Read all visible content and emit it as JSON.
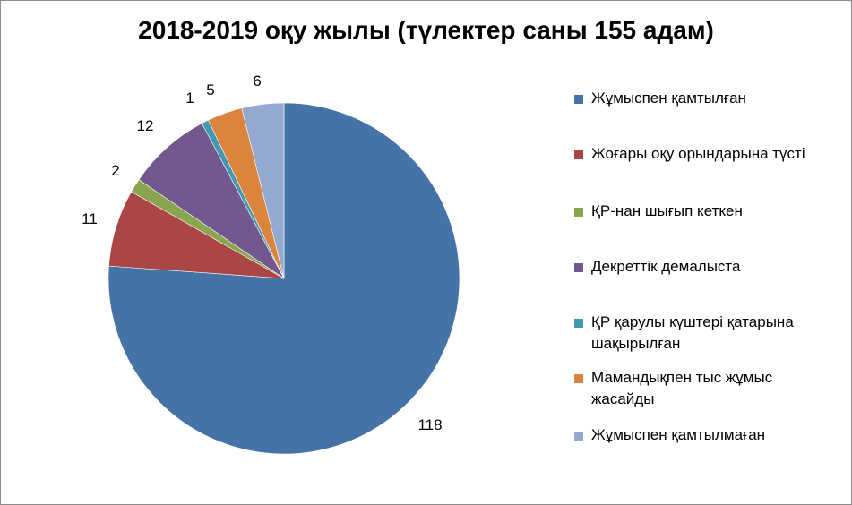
{
  "chart_data": {
    "type": "pie",
    "title": "2018-2019 оқу жылы (түлектер саны 155 адам)",
    "start_angle": "12 o'clock, clockwise",
    "legend_position": "right",
    "slices": [
      {
        "name": "Жұмыспен қамтылған",
        "value": 118,
        "label": "118",
        "color": "#4572a7"
      },
      {
        "name": "Жоғары оқу орындарына түсті",
        "value": 11,
        "label": "11",
        "color": "#aa4643"
      },
      {
        "name": "ҚР-нан шығып кеткен",
        "value": 2,
        "label": "2",
        "color": "#89a54e"
      },
      {
        "name": "Декреттік демалыста",
        "value": 12,
        "label": "12",
        "color": "#71588f"
      },
      {
        "name": "ҚР қарулы күштері қатарына шақырылған",
        "value": 1,
        "label": "1",
        "color": "#4198af"
      },
      {
        "name": "Мамандықпен тыс жұмыс жасайды",
        "value": 5,
        "label": "5",
        "color": "#db843d"
      },
      {
        "name": "Жұмыспен қамтылмаған",
        "value": 6,
        "label": "6",
        "color": "#93a9cf"
      }
    ]
  },
  "legend": {
    "items": [
      {
        "lines": [
          "Жұмыспен қамтылған"
        ]
      },
      {
        "lines": [
          "Жоғары оқу орындарына түсті"
        ]
      },
      {
        "lines": [
          "ҚР-нан шығып кеткен"
        ]
      },
      {
        "lines": [
          "Декреттік демалыста"
        ]
      },
      {
        "lines": [
          "ҚР қарулы күштері қатарына",
          "шақырылған"
        ]
      },
      {
        "lines": [
          "Мамандықпен тыс жұмыс",
          "жасайды"
        ]
      },
      {
        "lines": [
          "Жұмыспен қамтылмаған"
        ]
      }
    ]
  }
}
